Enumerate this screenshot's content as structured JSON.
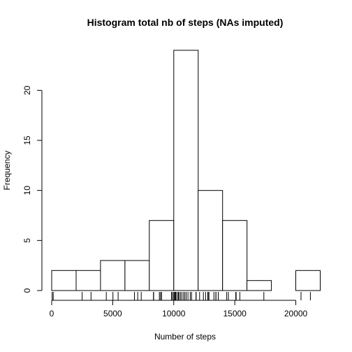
{
  "chart_data": {
    "type": "bar",
    "title": "Histogram total nb of steps (NAs imputed)",
    "xlabel": "Number of steps",
    "ylabel": "Frequency",
    "bin_edges": [
      0,
      2000,
      4000,
      6000,
      8000,
      10000,
      12000,
      14000,
      16000,
      18000,
      20000,
      22000
    ],
    "values": [
      2,
      2,
      3,
      3,
      7,
      24,
      10,
      7,
      1,
      0,
      2
    ],
    "xlim": [
      0,
      22000
    ],
    "ylim": [
      0,
      24
    ],
    "x_ticks": [
      0,
      5000,
      10000,
      15000,
      20000
    ],
    "x_tick_labels": [
      "0",
      "5000",
      "10000",
      "15000",
      "20000"
    ],
    "y_ticks": [
      0,
      5,
      10,
      15,
      20
    ],
    "y_tick_labels": [
      "0",
      "5",
      "10",
      "15",
      "20"
    ],
    "rug": [
      41,
      126,
      2492,
      3219,
      4472,
      5018,
      5441,
      6778,
      7047,
      7336,
      8334,
      8355,
      8821,
      8918,
      9000,
      9819,
      9900,
      10000,
      10056,
      10119,
      10139,
      10183,
      10304,
      10395,
      10439,
      10571,
      10600,
      10765,
      10766,
      10900,
      11015,
      11162,
      11352,
      11458,
      11834,
      11829,
      12116,
      12426,
      12608,
      12787,
      12811,
      12883,
      13294,
      13452,
      13460,
      13646,
      14339,
      14478,
      15084,
      15098,
      15110,
      15414,
      17382,
      20427,
      21194
    ],
    "grid": false,
    "legend": "none",
    "colors": {
      "bar_fill": "#ffffff",
      "stroke": "#000000"
    }
  }
}
